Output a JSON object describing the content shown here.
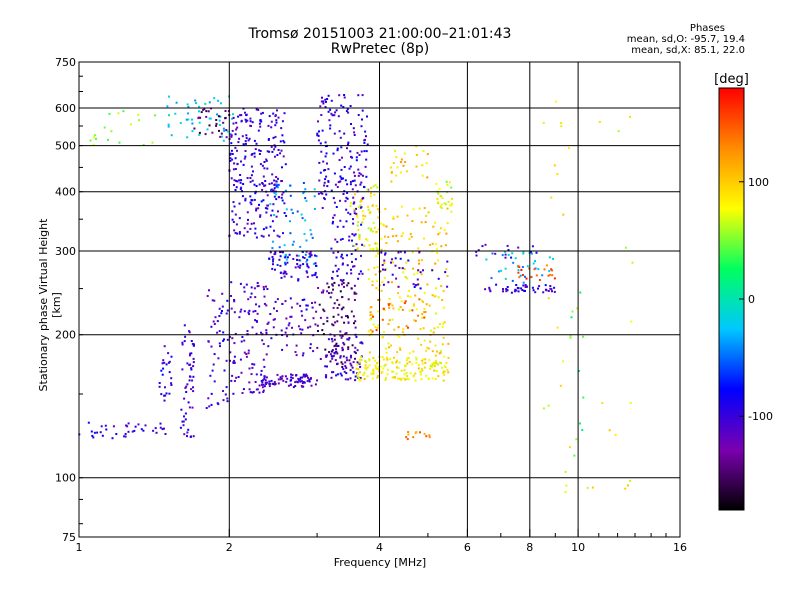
{
  "title": {
    "line1": "Tromsø 20151003 21:00:00–21:01:43",
    "line2": "RwPretec (8p)"
  },
  "stats": {
    "heading": "Phases",
    "o_mode": "mean, sd,O: -95.7, 19.4",
    "x_mode": "mean, sd,X:  85.1, 22.0"
  },
  "colorbar": {
    "unit": "deg",
    "range": [
      -180,
      180
    ],
    "ticks": [
      "100",
      "0",
      "-100"
    ],
    "tick_values": [
      100,
      0,
      -100
    ]
  },
  "chart_data": {
    "type": "scatter",
    "title": "Tromsø 20151003 21:00:00–21:01:43",
    "subtitle": "RwPretec (8p)",
    "xlabel": "Frequency [MHz]",
    "ylabel": "Stationary phase Virtual Height [km]",
    "x_scale": "log",
    "y_scale": "log",
    "xlim": [
      1,
      16
    ],
    "ylim": [
      75,
      750
    ],
    "x_ticks": [
      1,
      2,
      4,
      6,
      8,
      10,
      16
    ],
    "x_tick_labels": [
      "1",
      "2",
      "4",
      "6",
      "8",
      "10",
      "16"
    ],
    "y_ticks": [
      75,
      100,
      200,
      300,
      400,
      500,
      600,
      750
    ],
    "y_tick_labels": [
      "75",
      "100",
      "200",
      "300",
      "400",
      "500",
      "600",
      "750"
    ],
    "grid": true,
    "color_variable": "phase [deg]",
    "colormap": [
      "#000000",
      "#7a00b0",
      "#0000ff",
      "#00c8ff",
      "#00ff60",
      "#ffff00",
      "#ff8c00",
      "#ff0000"
    ],
    "clusters": [
      {
        "x": [
          1.0,
          1.3
        ],
        "h": [
          120,
          132
        ],
        "phase": -95,
        "n": 25
      },
      {
        "x": [
          1.3,
          1.5
        ],
        "h": [
          122,
          130
        ],
        "phase": -100,
        "n": 12
      },
      {
        "x": [
          1.45,
          1.55
        ],
        "h": [
          145,
          190
        ],
        "phase": -100,
        "n": 25
      },
      {
        "x": [
          1.6,
          1.7
        ],
        "h": [
          120,
          215
        ],
        "phase": -105,
        "n": 55
      },
      {
        "x": [
          1.05,
          1.45
        ],
        "h": [
          500,
          600
        ],
        "phase": 60,
        "n": 18
      },
      {
        "x": [
          1.5,
          2.05
        ],
        "h": [
          510,
          640
        ],
        "phase": -20,
        "n": 45
      },
      {
        "x": [
          1.7,
          2.0
        ],
        "h": [
          520,
          600
        ],
        "phase": -150,
        "n": 30
      },
      {
        "x": [
          1.8,
          2.0
        ],
        "h": [
          140,
          260
        ],
        "phase": -100,
        "n": 50
      },
      {
        "x": [
          2.0,
          2.6
        ],
        "h": [
          320,
          600
        ],
        "phase": -100,
        "n": 260
      },
      {
        "x": [
          2.0,
          2.4
        ],
        "h": [
          150,
          260
        ],
        "phase": -110,
        "n": 110
      },
      {
        "x": [
          2.3,
          3.0
        ],
        "h": [
          155,
          165
        ],
        "phase": -110,
        "n": 80
      },
      {
        "x": [
          2.4,
          3.0
        ],
        "h": [
          280,
          420
        ],
        "phase": -40,
        "n": 60
      },
      {
        "x": [
          2.4,
          3.0
        ],
        "h": [
          260,
          300
        ],
        "phase": -100,
        "n": 70
      },
      {
        "x": [
          2.4,
          3.0
        ],
        "h": [
          180,
          240
        ],
        "phase": -110,
        "n": 60
      },
      {
        "x": [
          3.0,
          3.6
        ],
        "h": [
          170,
          260
        ],
        "phase": -145,
        "n": 110
      },
      {
        "x": [
          3.0,
          3.8
        ],
        "h": [
          360,
          640
        ],
        "phase": -100,
        "n": 170
      },
      {
        "x": [
          3.1,
          3.7
        ],
        "h": [
          160,
          200
        ],
        "phase": -105,
        "n": 70
      },
      {
        "x": [
          3.2,
          3.7
        ],
        "h": [
          260,
          360
        ],
        "phase": -95,
        "n": 60
      },
      {
        "x": [
          3.5,
          4.0
        ],
        "h": [
          300,
          420
        ],
        "phase": 80,
        "n": 60
      },
      {
        "x": [
          3.6,
          5.5
        ],
        "h": [
          160,
          180
        ],
        "phase": 85,
        "n": 160
      },
      {
        "x": [
          3.8,
          5.5
        ],
        "h": [
          180,
          280
        ],
        "phase": 90,
        "n": 140
      },
      {
        "x": [
          3.9,
          5.5
        ],
        "h": [
          280,
          380
        ],
        "phase": 100,
        "n": 70
      },
      {
        "x": [
          3.8,
          5.0
        ],
        "h": [
          200,
          240
        ],
        "phase": 140,
        "n": 25
      },
      {
        "x": [
          4.2,
          5.0
        ],
        "h": [
          420,
          500
        ],
        "phase": 100,
        "n": 25
      },
      {
        "x": [
          5.2,
          5.6
        ],
        "h": [
          360,
          420
        ],
        "phase": 70,
        "n": 25
      },
      {
        "x": [
          4.0,
          5.5
        ],
        "h": [
          250,
          300
        ],
        "phase": -100,
        "n": 40
      },
      {
        "x": [
          4.5,
          5.2
        ],
        "h": [
          120,
          125
        ],
        "phase": 130,
        "n": 12
      },
      {
        "x": [
          6.5,
          9.0
        ],
        "h": [
          245,
          255
        ],
        "phase": -100,
        "n": 45
      },
      {
        "x": [
          6.5,
          9.0
        ],
        "h": [
          255,
          300
        ],
        "phase": -30,
        "n": 35
      },
      {
        "x": [
          7.5,
          9.0
        ],
        "h": [
          260,
          280
        ],
        "phase": 150,
        "n": 20
      },
      {
        "x": [
          6.2,
          8.5
        ],
        "h": [
          290,
          310
        ],
        "phase": -100,
        "n": 15
      },
      {
        "x": [
          8.5,
          13.0
        ],
        "h": [
          90,
          630
        ],
        "phase": 80,
        "n": 35
      },
      {
        "x": [
          9.5,
          10.3
        ],
        "h": [
          110,
          350
        ],
        "phase": 40,
        "n": 12
      }
    ]
  }
}
